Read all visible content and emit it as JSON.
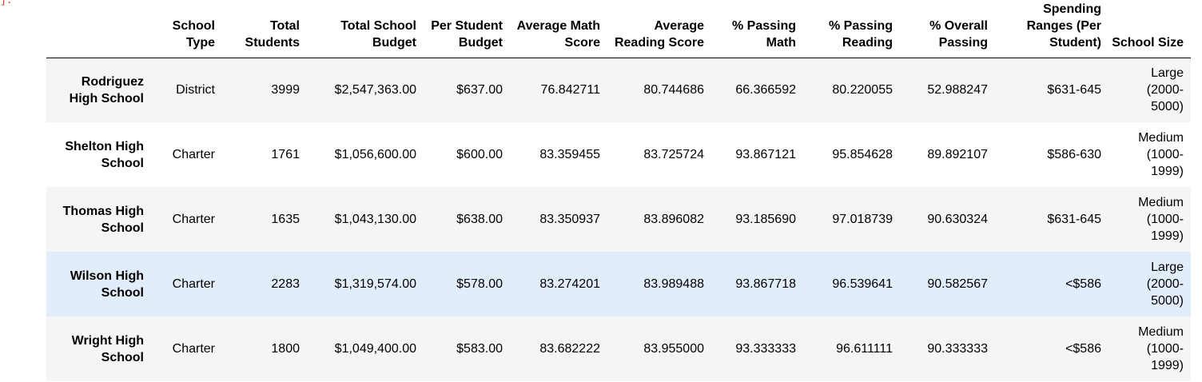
{
  "prompt_fragment": "]:",
  "table": {
    "index_header": "",
    "columns": [
      "School Type",
      "Total Students",
      "Total School Budget",
      "Per Student Budget",
      "Average Math Score",
      "Average Reading Score",
      "% Passing Math",
      "% Passing Reading",
      "% Overall Passing",
      "Spending Ranges (Per Student)",
      "School Size"
    ],
    "rows": [
      {
        "school": "Rodriguez High School",
        "type": "District",
        "students": "3999",
        "budget": "$2,547,363.00",
        "per_student": "$637.00",
        "math": "76.842711",
        "reading": "80.744686",
        "pass_math": "66.366592",
        "pass_reading": "80.220055",
        "overall": "52.988247",
        "spending": "$631-645",
        "size": "Large (2000-5000)"
      },
      {
        "school": "Shelton High School",
        "type": "Charter",
        "students": "1761",
        "budget": "$1,056,600.00",
        "per_student": "$600.00",
        "math": "83.359455",
        "reading": "83.725724",
        "pass_math": "93.867121",
        "pass_reading": "95.854628",
        "overall": "89.892107",
        "spending": "$586-630",
        "size": "Medium (1000-1999)"
      },
      {
        "school": "Thomas High School",
        "type": "Charter",
        "students": "1635",
        "budget": "$1,043,130.00",
        "per_student": "$638.00",
        "math": "83.350937",
        "reading": "83.896082",
        "pass_math": "93.185690",
        "pass_reading": "97.018739",
        "overall": "90.630324",
        "spending": "$631-645",
        "size": "Medium (1000-1999)"
      },
      {
        "school": "Wilson High School",
        "type": "Charter",
        "students": "2283",
        "budget": "$1,319,574.00",
        "per_student": "$578.00",
        "math": "83.274201",
        "reading": "83.989488",
        "pass_math": "93.867718",
        "pass_reading": "96.539641",
        "overall": "90.582567",
        "spending": "<$586",
        "size": "Large (2000-5000)",
        "highlighted": true
      },
      {
        "school": "Wright High School",
        "type": "Charter",
        "students": "1800",
        "budget": "$1,049,400.00",
        "per_student": "$583.00",
        "math": "83.682222",
        "reading": "83.955000",
        "pass_math": "93.333333",
        "pass_reading": "96.611111",
        "overall": "90.333333",
        "spending": "<$586",
        "size": "Medium (1000-1999)"
      }
    ]
  },
  "colors": {
    "row_odd": "#f5f5f5",
    "row_even": "#ffffff",
    "row_hover": "#e1edfb",
    "prompt": "#d84315"
  }
}
